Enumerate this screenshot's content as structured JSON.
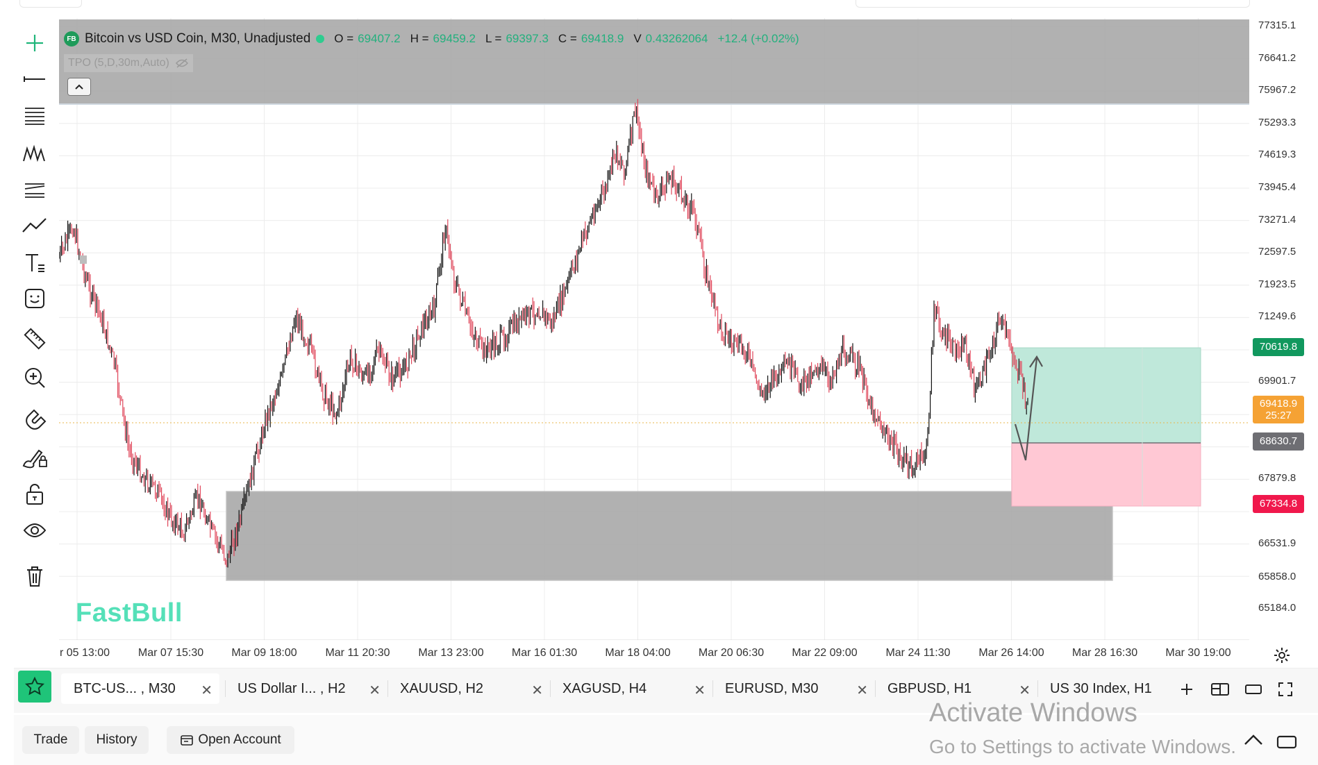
{
  "legend": {
    "badge": "FB",
    "symbol_title": "Bitcoin vs USD Coin, M30, Unadjusted",
    "ohlc": [
      {
        "key": "O =",
        "value": "69407.2"
      },
      {
        "key": "H =",
        "value": "69459.2"
      },
      {
        "key": "L =",
        "value": "69397.3"
      },
      {
        "key": "C =",
        "value": "69418.9"
      },
      {
        "key": "V",
        "value": "0.43262064"
      }
    ],
    "change": "+12.4 (+0.02%)",
    "indicator": "TPO (5,D,30m,Auto)"
  },
  "price_axis": [
    "77315.1",
    "76641.2",
    "75967.2",
    "75293.3",
    "74619.3",
    "73945.4",
    "73271.4",
    "72597.5",
    "71923.5",
    "71249.6",
    "69901.7",
    "67879.8",
    "66531.9",
    "65858.0",
    "65184.0"
  ],
  "price_tags": {
    "target": {
      "label": "70619.8",
      "color": "#11985e"
    },
    "current_price": {
      "label": "69418.9",
      "color": "#f5a234"
    },
    "countdown": "25:27",
    "entry": {
      "label": "68630.7",
      "color": "#6e6e73"
    },
    "stop": {
      "label": "67334.8",
      "color": "#f0184c"
    }
  },
  "time_axis": [
    "r 05 13:00",
    "Mar 07 15:30",
    "Mar 09 18:00",
    "Mar 11 20:30",
    "Mar 13 23:00",
    "Mar 16 01:30",
    "Mar 18 04:00",
    "Mar 20 06:30",
    "Mar 22 09:00",
    "Mar 24 11:30",
    "Mar 26 14:00",
    "Mar 28 16:30",
    "Mar 30 19:00"
  ],
  "watermark": "FastBull",
  "tools": [
    "crosshair-icon",
    "horizontal-line-icon",
    "fib-retracement-icon",
    "pattern-icon",
    "parallel-channel-icon",
    "trend-icon",
    "text-icon",
    "emoji-icon",
    "ruler-icon",
    "zoom-in-icon",
    "magnet-icon",
    "brush-lock-icon",
    "lock-icon",
    "eye-icon",
    "trash-icon"
  ],
  "tabs": [
    {
      "label": "BTC-US...  , M30",
      "active": true
    },
    {
      "label": "US Dollar I... , H2",
      "active": false
    },
    {
      "label": "XAUUSD, H2",
      "active": false
    },
    {
      "label": "XAGUSD, H4",
      "active": false
    },
    {
      "label": "EURUSD, M30",
      "active": false
    },
    {
      "label": "GBPUSD, H1",
      "active": false
    },
    {
      "label": "US 30 Index, H1",
      "active": false
    }
  ],
  "bottom": {
    "trade": "Trade",
    "history": "History",
    "open_account": "Open Account"
  },
  "activate": {
    "title": "Activate Windows",
    "subtitle": "Go to Settings to activate Windows."
  },
  "colors": {
    "up": "#111111",
    "down": "#e0465a",
    "zone": "#a9a9a9",
    "profit": "#bfe8da",
    "loss": "#ffc8d4"
  }
}
